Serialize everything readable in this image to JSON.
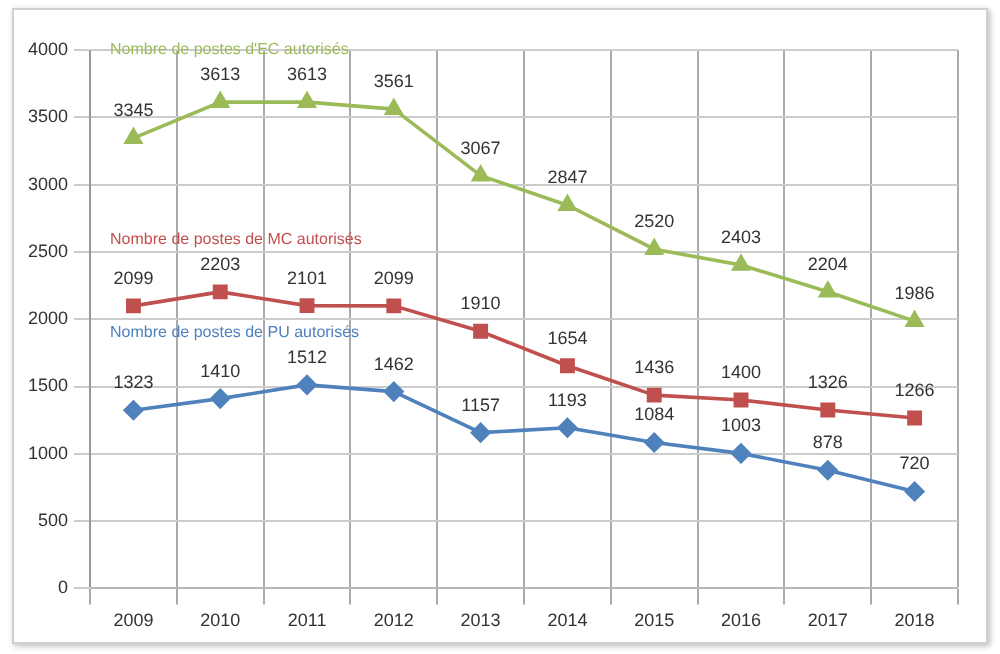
{
  "chart_data": {
    "type": "line",
    "categories": [
      "2009",
      "2010",
      "2011",
      "2012",
      "2013",
      "2014",
      "2015",
      "2016",
      "2017",
      "2018"
    ],
    "series": [
      {
        "name": "Nombre de postes d'EC autorisés",
        "color": "#9bbb59",
        "marker": "triangle",
        "values": [
          3345,
          3613,
          3613,
          3561,
          3067,
          2847,
          2520,
          2403,
          2204,
          1986
        ]
      },
      {
        "name": "Nombre de postes de MC autorisés",
        "color": "#c0504d",
        "marker": "square",
        "values": [
          2099,
          2203,
          2101,
          2099,
          1910,
          1654,
          1436,
          1400,
          1326,
          1266
        ]
      },
      {
        "name": "Nombre de postes de PU autorisés",
        "color": "#4f81bd",
        "marker": "diamond",
        "values": [
          1323,
          1410,
          1512,
          1462,
          1157,
          1193,
          1084,
          1003,
          878,
          720
        ]
      }
    ],
    "ylim": [
      0,
      4000
    ],
    "yticks": [
      0,
      500,
      1000,
      1500,
      2000,
      2500,
      3000,
      3500,
      4000
    ],
    "grid": true,
    "legend": false,
    "data_labels": true,
    "line_style": "solid"
  }
}
